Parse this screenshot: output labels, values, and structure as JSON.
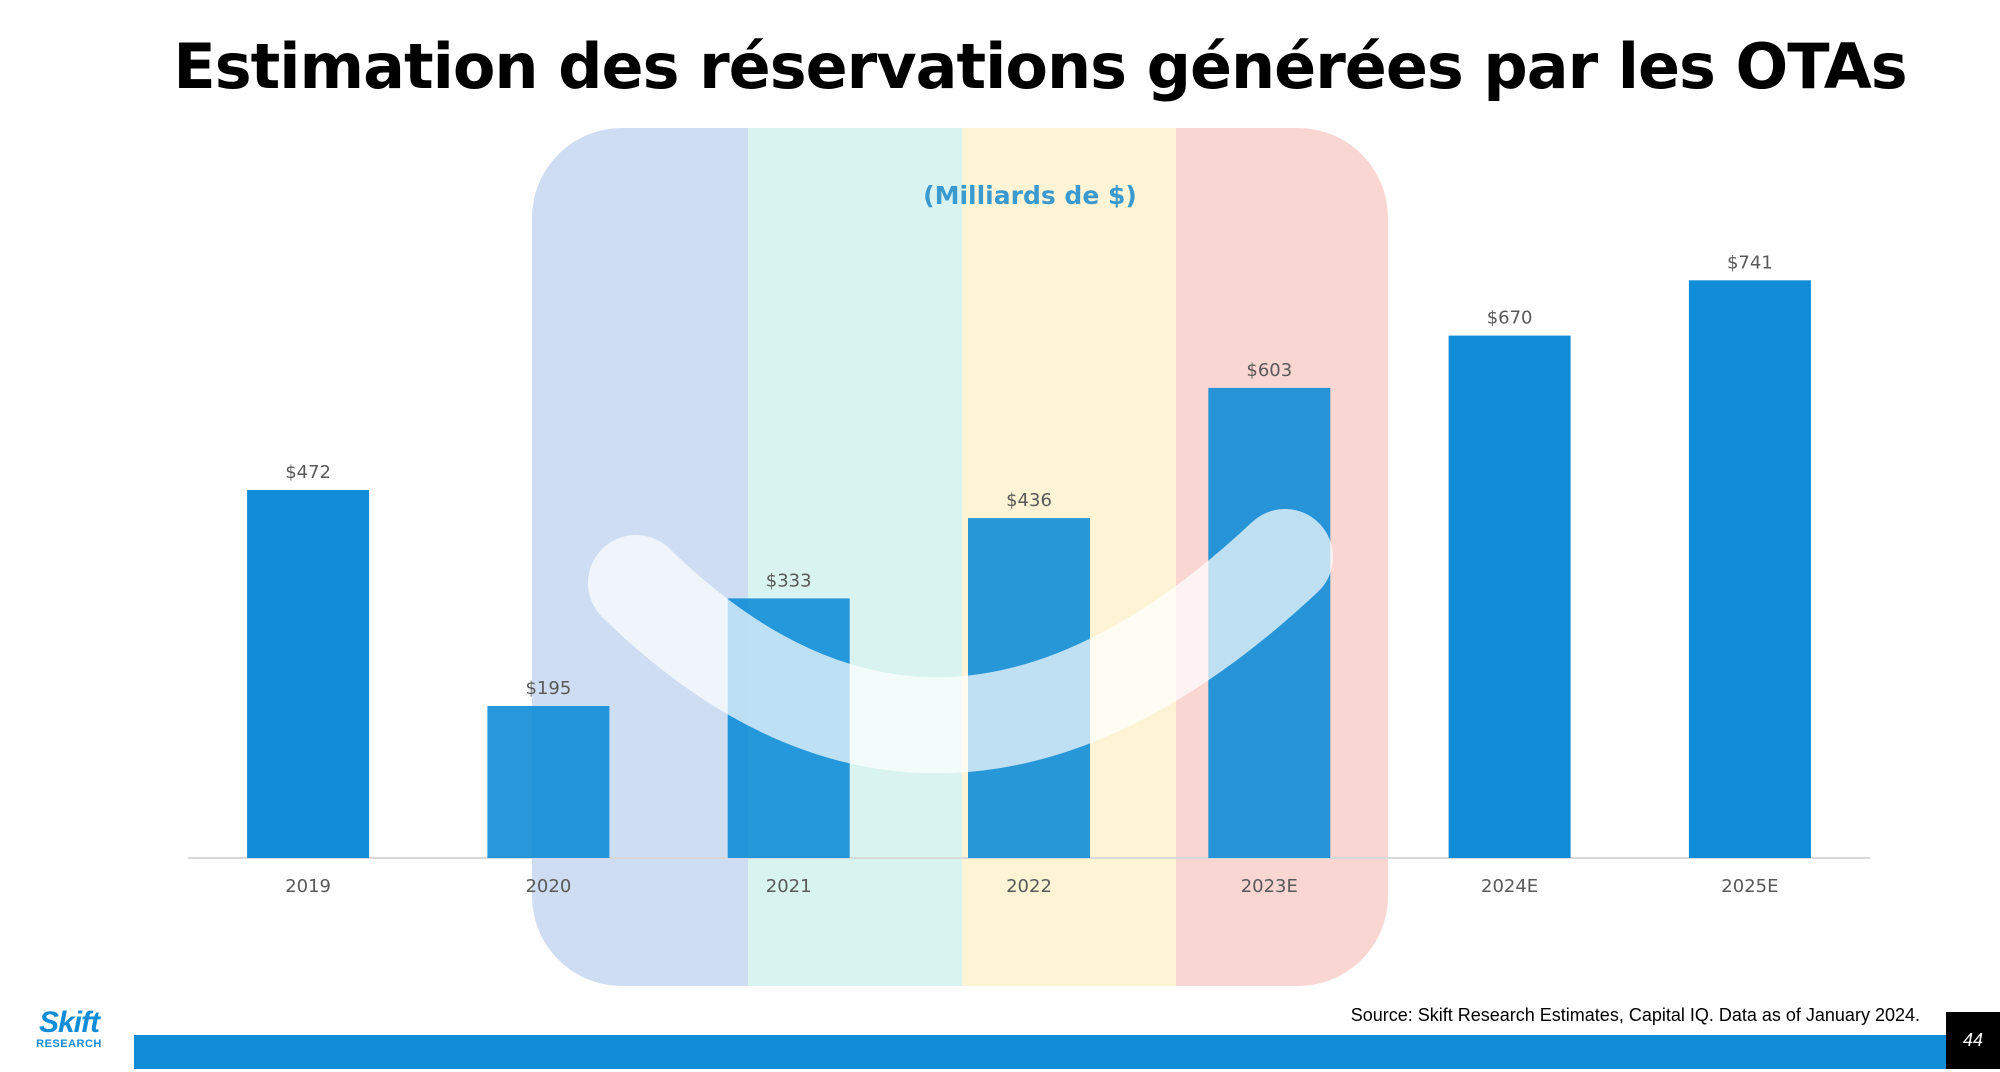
{
  "title": "Estimation des réservations générées par les OTAs",
  "source": "Source: Skift Research Estimates, Capital IQ. Data as of January 2024.",
  "page_number": "44",
  "logo": {
    "name": "Skift",
    "subtitle": "RESEARCH"
  },
  "colors": {
    "bar": "#118dd8",
    "footer": "#118dd8",
    "unit_label": "#3a9ad0",
    "overlay_blue": "#aec6e8",
    "overlay_teal": "#c5ece8",
    "overlay_yellow": "#fcefc4",
    "overlay_red": "#f8c0ba"
  },
  "chart_data": {
    "type": "bar",
    "title": "Estimation des réservations générées par les OTAs",
    "unit_label": "(Milliards de $)",
    "categories": [
      "2019",
      "2020",
      "2021",
      "2022",
      "2023E",
      "2024E",
      "2025E"
    ],
    "values": [
      472,
      195,
      333,
      436,
      603,
      670,
      741
    ],
    "data_labels": [
      "$472",
      "$195",
      "$333",
      "$436",
      "$603",
      "$670",
      "$741"
    ],
    "ylim": [
      0,
      800
    ],
    "xlabel": "",
    "ylabel": "",
    "grid": false,
    "legend": "none",
    "overlay": {
      "description_free": true,
      "bands_start_category": 1,
      "bands_end_category": 4
    }
  }
}
